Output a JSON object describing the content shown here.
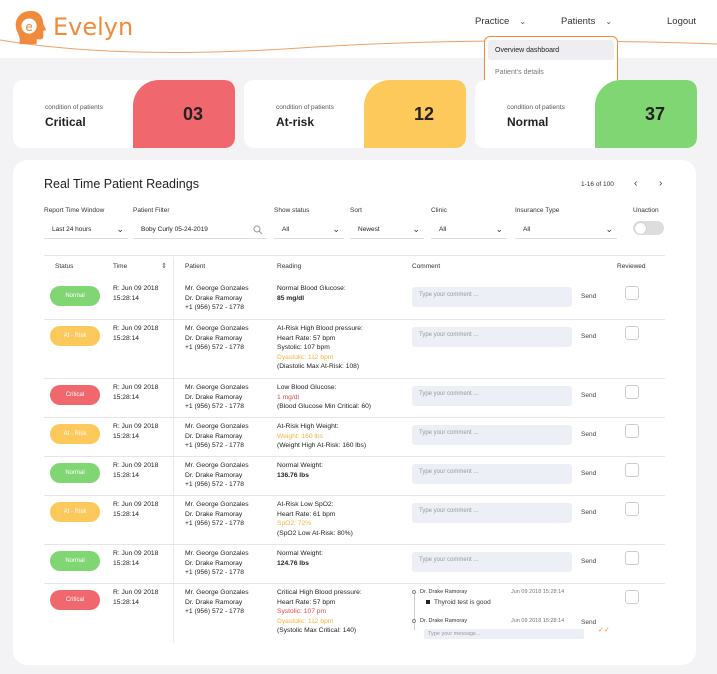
{
  "app": {
    "name": "Evelyn",
    "brand_color": "#f08a3c"
  },
  "nav": {
    "practice_label": "Practice",
    "patients_label": "Patients",
    "logout_label": "Logout",
    "dropdown": {
      "items": [
        {
          "label": "Overview dashboard",
          "active": true
        },
        {
          "label": "Patient's details",
          "active": false
        }
      ]
    }
  },
  "summary": [
    {
      "label": "condition of patients",
      "title": "Critical",
      "count": "03",
      "color": "#f0686e"
    },
    {
      "label": "condition of patients",
      "title": "At-risk",
      "count": "12",
      "color": "#fdc95a"
    },
    {
      "label": "condition of patients",
      "title": "Normal",
      "count": "37",
      "color": "#7fd672"
    }
  ],
  "panel": {
    "title": "Real Time Patient Readings",
    "pager_text": "1-16 of 100",
    "prev_icon": "chevron-left-icon",
    "next_icon": "chevron-right-icon"
  },
  "filters": {
    "report_window": {
      "label": "Report Time Window",
      "value": "Last 24 hours"
    },
    "patient_filter": {
      "label": "Patient Filter",
      "value": "Boby Curly  05-24-2019"
    },
    "show_status": {
      "label": "Show status",
      "value": "All"
    },
    "sort": {
      "label": "Sort",
      "value": "Newest"
    },
    "clinic": {
      "label": "Clinic",
      "value": "All"
    },
    "insurance_type": {
      "label": "Insurance Type",
      "value": "All"
    },
    "unaction": {
      "label": "Unaction",
      "on": false
    }
  },
  "columns": {
    "status": "Status",
    "time": "Time",
    "patient": "Patient",
    "reading": "Reading",
    "comment": "Comment",
    "reviewed": "Reviewed"
  },
  "comment_placeholder": "Type your comment ...",
  "send_label": "Send",
  "status_colors": {
    "Normal": "#7fd672",
    "At - Risk": "#fdc95a",
    "Critical": "#f0686e"
  },
  "rows": [
    {
      "status": "Normal",
      "time": [
        "R: Jun 09 2018",
        "15:28:14"
      ],
      "patient": [
        "Mr. George Gonzales",
        "Dr. Drake Ramoray",
        "+1 (956) 572 - 1778"
      ],
      "reading": [
        {
          "text": "Normal Blood Glucose:",
          "style": "normal"
        },
        {
          "text": "85 mg/dl",
          "style": "bold"
        }
      ]
    },
    {
      "status": "At - Risk",
      "time": [
        "R: Jun 09 2018",
        "15:28:14"
      ],
      "patient": [
        "Mr. George Gonzales",
        "Dr. Drake Ramoray",
        "+1 (956) 572 - 1778"
      ],
      "reading": [
        {
          "text": "At-Risk High Blood pressure:",
          "style": "normal"
        },
        {
          "text": "Heart Rate: 57 bpm",
          "style": "normal"
        },
        {
          "text": "Systolic: 107 bpm",
          "style": "normal"
        },
        {
          "text": "Dyastolic: 112 bpm",
          "style": "alert"
        },
        {
          "text": "(Diastolic Max At-Risk: 108)",
          "style": "normal"
        }
      ]
    },
    {
      "status": "Critical",
      "time": [
        "R: Jun 09 2018",
        "15:28:14"
      ],
      "patient": [
        "Mr. George Gonzales",
        "Dr. Drake Ramoray",
        "+1 (956) 572 - 1778"
      ],
      "reading": [
        {
          "text": "Low Blood Glucose:",
          "style": "normal"
        },
        {
          "text": "1 mg/dl",
          "style": "crit"
        },
        {
          "text": "(Blood Glucose Min Critical: 60)",
          "style": "normal"
        }
      ]
    },
    {
      "status": "At - Risk",
      "time": [
        "R: Jun 09 2018",
        "15:28:14"
      ],
      "patient": [
        "Mr. George Gonzales",
        "Dr. Drake Ramoray",
        "+1 (956) 572 - 1778"
      ],
      "reading": [
        {
          "text": "At-Risk High Weight:",
          "style": "normal"
        },
        {
          "text": "Weight: 160 lbs",
          "style": "alert"
        },
        {
          "text": "(Weight High At-Risk: 160 lbs)",
          "style": "normal"
        }
      ]
    },
    {
      "status": "Normal",
      "time": [
        "R: Jun 09 2018",
        "15:28:14"
      ],
      "patient": [
        "Mr. George Gonzales",
        "Dr. Drake Ramoray",
        "+1 (956) 572 - 1778"
      ],
      "reading": [
        {
          "text": "Normal Weight:",
          "style": "normal"
        },
        {
          "text": "136.76 lbs",
          "style": "bold"
        }
      ]
    },
    {
      "status": "At - Risk",
      "time": [
        "R: Jun 09 2018",
        "15:28:14"
      ],
      "patient": [
        "Mr. George Gonzales",
        "Dr. Drake Ramoray",
        "+1 (956) 572 - 1778"
      ],
      "reading": [
        {
          "text": "At-Risk Low SpO2:",
          "style": "normal"
        },
        {
          "text": "Heart Rate: 61 bpm",
          "style": "normal"
        },
        {
          "text": "SpO2: 72%",
          "style": "alert"
        },
        {
          "text": "(SpO2 Low At-Risk: 80%)",
          "style": "normal"
        }
      ]
    },
    {
      "status": "Normal",
      "time": [
        "R: Jun 09 2018",
        "15:28:14"
      ],
      "patient": [
        "Mr. George Gonzales",
        "Dr. Drake Ramoray",
        "+1 (956) 572 - 1778"
      ],
      "reading": [
        {
          "text": "Normal Weight:",
          "style": "normal"
        },
        {
          "text": "124.76 lbs",
          "style": "bold"
        }
      ]
    },
    {
      "status": "Critical",
      "time": [
        "R: Jun 09 2018",
        "15:28:14"
      ],
      "patient": [
        "Mr. George Gonzales",
        "Dr. Drake Ramoray",
        "+1 (956) 572 - 1778"
      ],
      "reading": [
        {
          "text": "Critical High Blood pressure:",
          "style": "normal"
        },
        {
          "text": "Heart Rate: 57 bpm",
          "style": "normal"
        },
        {
          "text": "Systolic: 107 pm",
          "style": "crit"
        },
        {
          "text": "Dyastolic: 112 bpm",
          "style": "alert"
        },
        {
          "text": "(Systolic Max Critical: 140)",
          "style": "normal"
        }
      ]
    }
  ],
  "thread": {
    "messages": [
      {
        "author": "Dr. Drake Ramoray",
        "time": "Jun 09 2018 15:28:14",
        "text": "Thyroid test is good"
      },
      {
        "author": "Dr. Drake Ramoray",
        "time": "Jun 09 2018 15:28:14",
        "text": ""
      }
    ],
    "reply_placeholder": "Type your message..."
  }
}
